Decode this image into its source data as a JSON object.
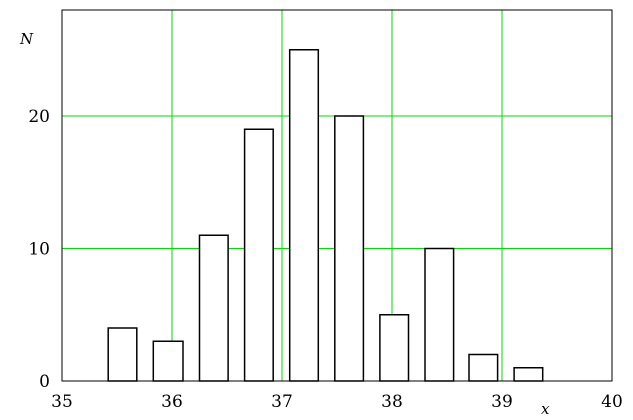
{
  "chart_data": {
    "type": "bar",
    "title": "",
    "xlabel": "x",
    "ylabel": "N",
    "xlim": [
      35,
      40
    ],
    "ylim": [
      0,
      28
    ],
    "grid": true,
    "grid_color": "#00dd00",
    "bar_fill": "#ffffff",
    "bar_stroke": "#000000",
    "x_ticks": [
      35,
      36,
      37,
      38,
      39,
      40
    ],
    "x_tick_labels": [
      "35",
      "36",
      "37",
      "38",
      "39",
      "40"
    ],
    "y_ticks": [
      0,
      10,
      20
    ],
    "y_tick_labels": [
      "0",
      "10",
      "20"
    ],
    "bars": [
      {
        "x_start": 35.42,
        "x_end": 35.68,
        "value": 4
      },
      {
        "x_start": 35.83,
        "x_end": 36.1,
        "value": 3
      },
      {
        "x_start": 36.25,
        "x_end": 36.51,
        "value": 11
      },
      {
        "x_start": 36.66,
        "x_end": 36.92,
        "value": 19
      },
      {
        "x_start": 37.07,
        "x_end": 37.33,
        "value": 25
      },
      {
        "x_start": 37.48,
        "x_end": 37.74,
        "value": 20
      },
      {
        "x_start": 37.89,
        "x_end": 38.15,
        "value": 5
      },
      {
        "x_start": 38.3,
        "x_end": 38.56,
        "value": 10
      },
      {
        "x_start": 38.7,
        "x_end": 38.96,
        "value": 2
      },
      {
        "x_start": 39.11,
        "x_end": 39.37,
        "value": 1
      }
    ]
  }
}
